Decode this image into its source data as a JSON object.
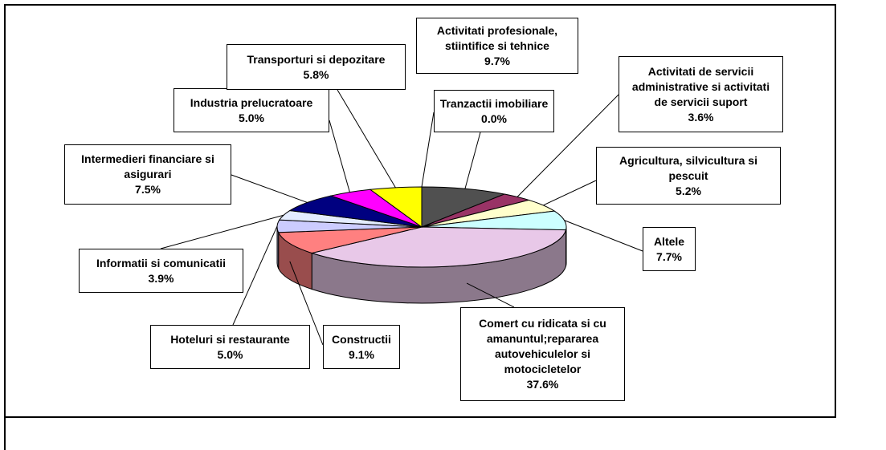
{
  "chart_data": {
    "type": "pie",
    "categories": [
      "Activitati profesionale, stiintifice si tehnice",
      "Activitati de servicii administrative si activitati de servicii suport",
      "Agricultura, silvicultura si pescuit",
      "Altele",
      "Comert cu ridicata si cu amanuntul;repararea autovehiculelor si motocicletelor",
      "Constructii",
      "Hoteluri si restaurante",
      "Informatii si comunicatii",
      "Intermedieri financiare si asigurari",
      "Industria prelucratoare",
      "Transporturi si depozitare",
      "Tranzactii imobiliare"
    ],
    "values": [
      9.7,
      3.6,
      5.2,
      7.7,
      37.6,
      9.1,
      5.0,
      3.9,
      7.5,
      5.0,
      5.8,
      0.0
    ],
    "value_labels": [
      "9.7%",
      "3.6%",
      "5.2%",
      "7.7%",
      "37.6%",
      "9.1%",
      "5.0%",
      "3.9%",
      "7.5%",
      "5.0%",
      "5.8%",
      "0.0%"
    ],
    "colors": [
      "#505050",
      "#993366",
      "#ffffcc",
      "#ccffff",
      "#e8c8e8",
      "#ff8080",
      "#ccccff",
      "#e4ecff",
      "#000080",
      "#ff00ff",
      "#ffff00",
      "#808080"
    ]
  }
}
